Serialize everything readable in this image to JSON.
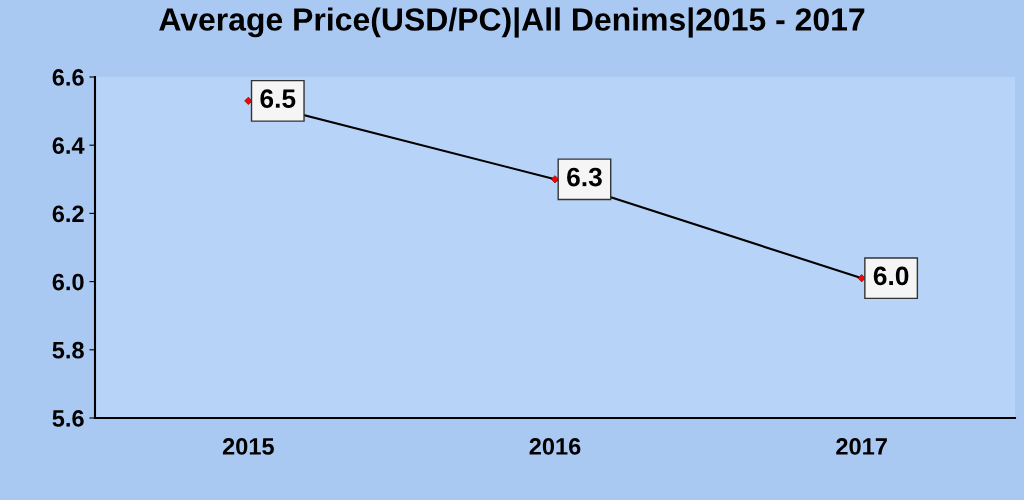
{
  "chart_data": {
    "type": "line",
    "title": "Average Price(USD/PC)|All Denims|2015 - 2017",
    "categories": [
      "2015",
      "2016",
      "2017"
    ],
    "series": [
      {
        "color": "#000000",
        "values": [
          6.53,
          6.3,
          6.01
        ],
        "value_labels": [
          "6.5",
          "6.3",
          "6.0"
        ]
      }
    ],
    "ylim": [
      5.6,
      6.6
    ],
    "yticks": [
      {
        "value": 5.6,
        "label": "5.6"
      },
      {
        "value": 5.8,
        "label": "5.8"
      },
      {
        "value": 6.0,
        "label": "6.0"
      },
      {
        "value": 6.2,
        "label": "6.2"
      },
      {
        "value": 6.4,
        "label": "6.4"
      },
      {
        "value": 6.6,
        "label": "6.6"
      }
    ],
    "marker": "diamond",
    "grid": false,
    "legend": false
  }
}
